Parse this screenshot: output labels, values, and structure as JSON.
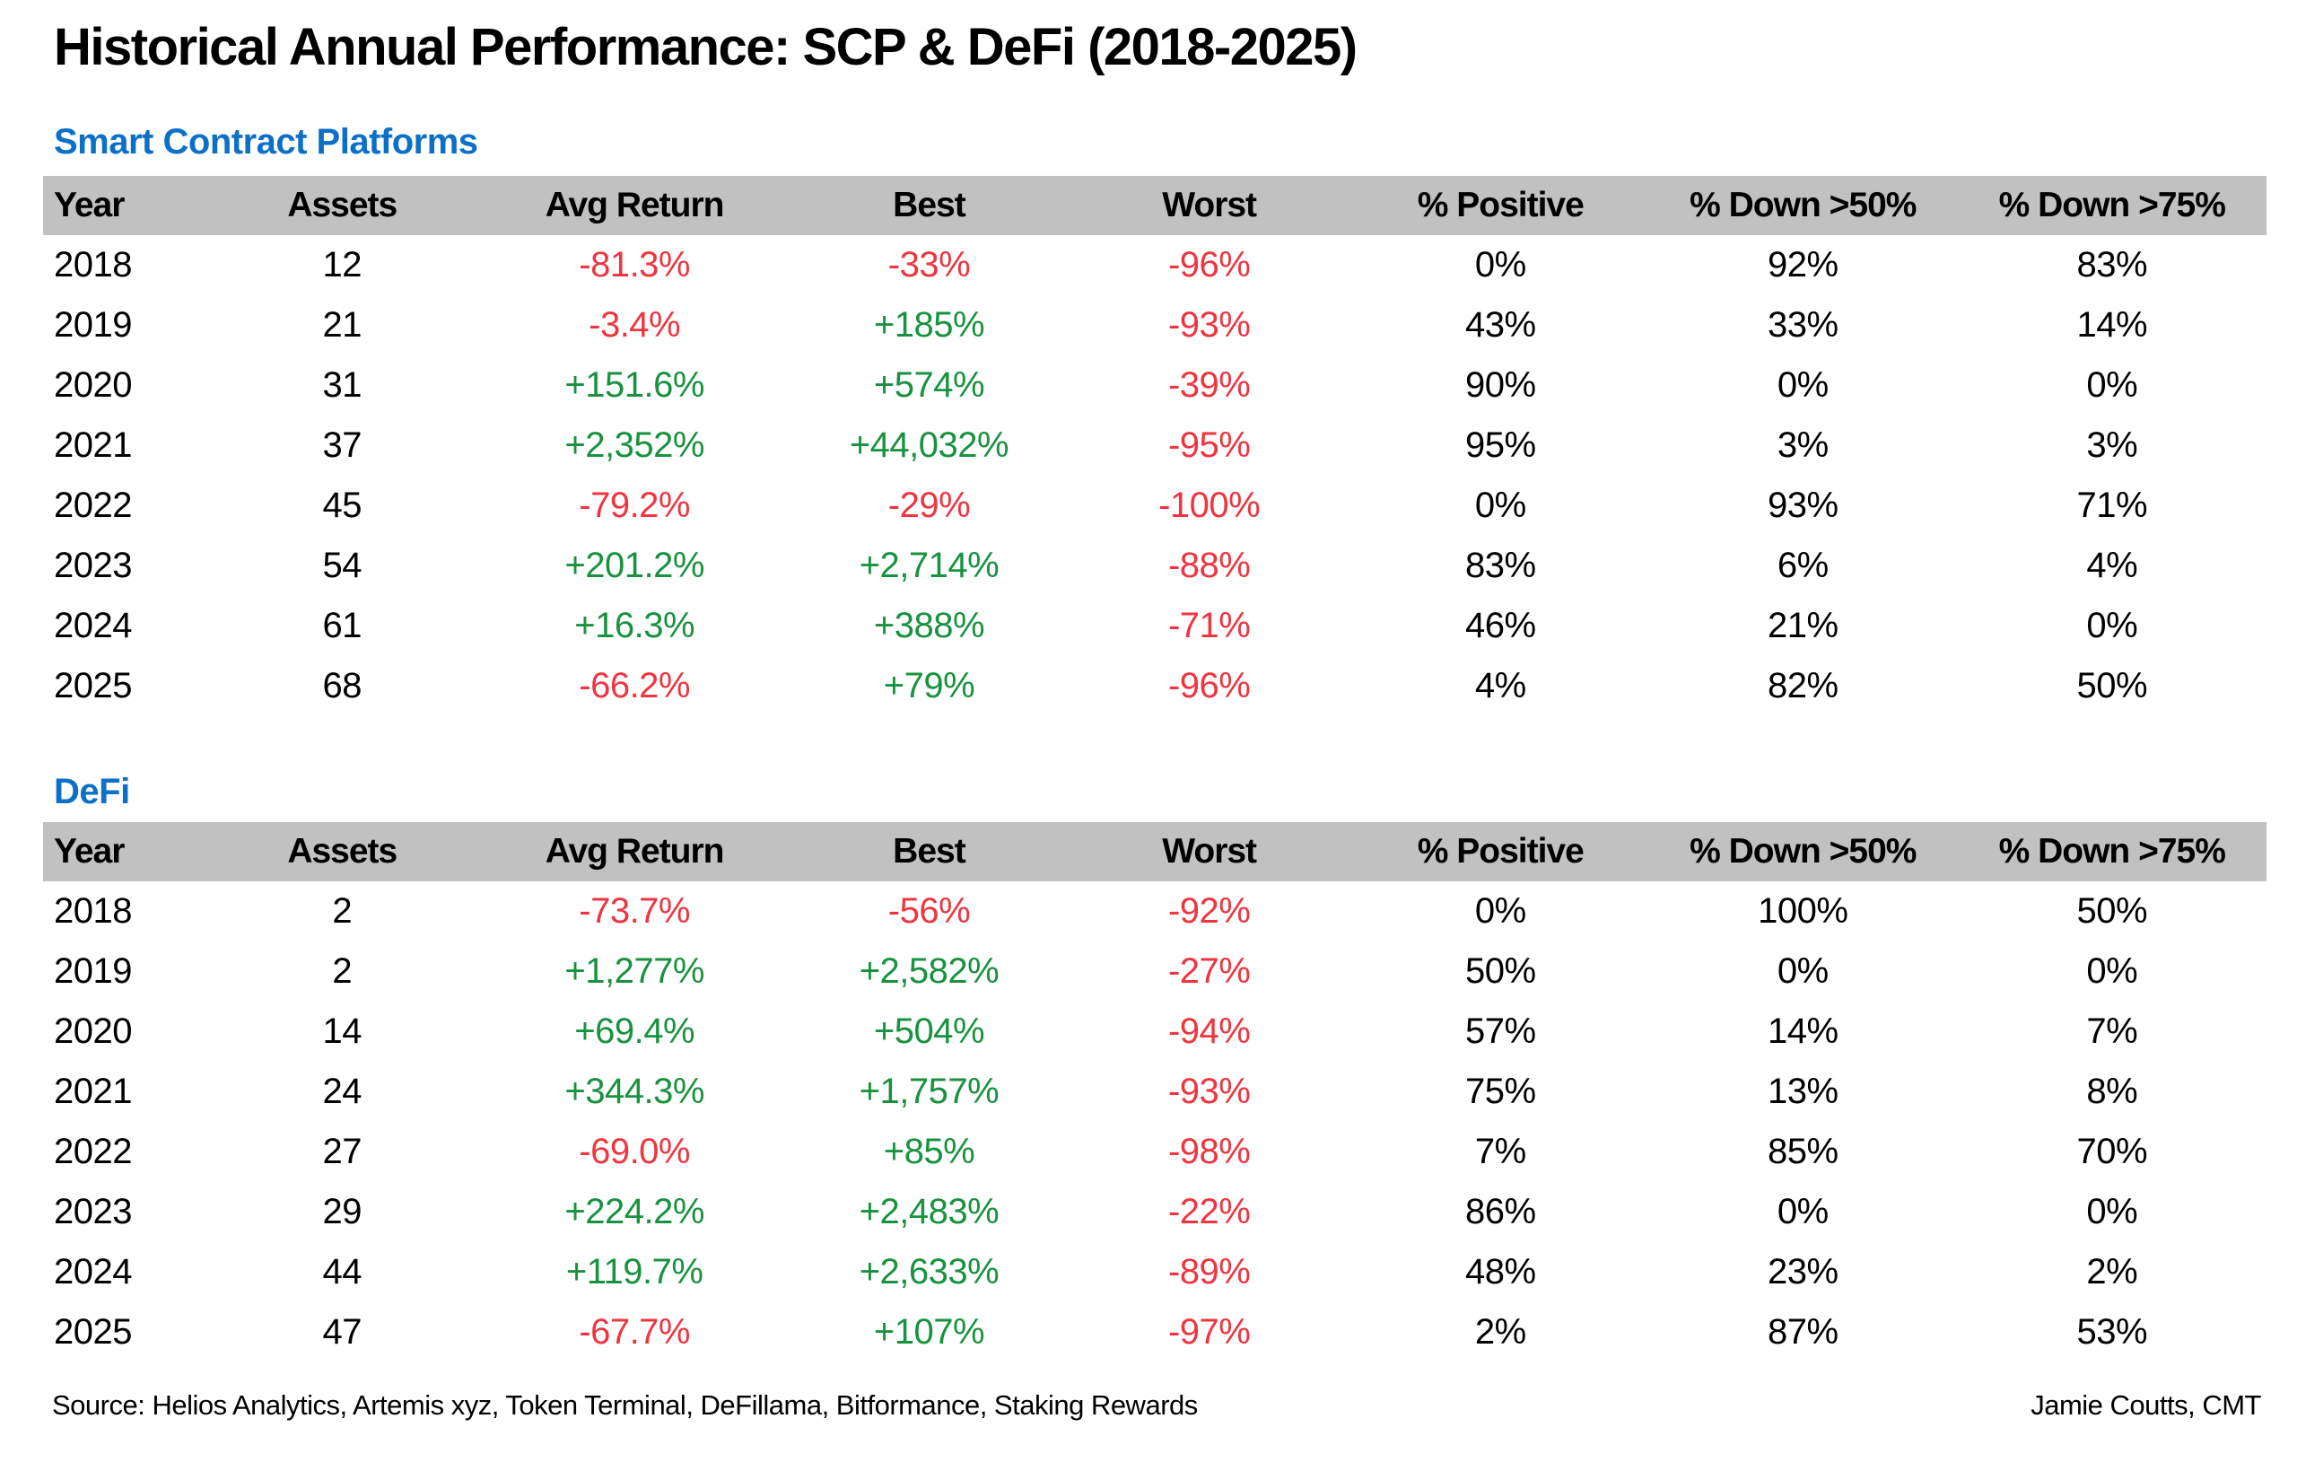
{
  "title": "Historical Annual Performance: SCP & DeFi (2018-2025)",
  "colors": {
    "heading_blue": "#0d70c8",
    "positive_green": "#18923f",
    "negative_red": "#ee3540",
    "header_band_gray": "#c1c1c1",
    "text_black": "#000000",
    "background": "#ffffff"
  },
  "chart_data": [
    {
      "type": "table",
      "title": "Smart Contract Platforms",
      "columns": [
        "Year",
        "Assets",
        "Avg Return",
        "Best",
        "Worst",
        "% Positive",
        "% Down >50%",
        "% Down >75%"
      ],
      "rows": [
        [
          "2018",
          "12",
          "-81.3%",
          "-33%",
          "-96%",
          "0%",
          "92%",
          "83%"
        ],
        [
          "2019",
          "21",
          "-3.4%",
          "+185%",
          "-93%",
          "43%",
          "33%",
          "14%"
        ],
        [
          "2020",
          "31",
          "+151.6%",
          "+574%",
          "-39%",
          "90%",
          "0%",
          "0%"
        ],
        [
          "2021",
          "37",
          "+2,352%",
          "+44,032%",
          "-95%",
          "95%",
          "3%",
          "3%"
        ],
        [
          "2022",
          "45",
          "-79.2%",
          "-29%",
          "-100%",
          "0%",
          "93%",
          "71%"
        ],
        [
          "2023",
          "54",
          "+201.2%",
          "+2,714%",
          "-88%",
          "83%",
          "6%",
          "4%"
        ],
        [
          "2024",
          "61",
          "+16.3%",
          "+388%",
          "-71%",
          "46%",
          "21%",
          "0%"
        ],
        [
          "2025",
          "68",
          "-66.2%",
          "+79%",
          "-96%",
          "4%",
          "82%",
          "50%"
        ]
      ]
    },
    {
      "type": "table",
      "title": "DeFi",
      "columns": [
        "Year",
        "Assets",
        "Avg Return",
        "Best",
        "Worst",
        "% Positive",
        "% Down >50%",
        "% Down >75%"
      ],
      "rows": [
        [
          "2018",
          "2",
          "-73.7%",
          "-56%",
          "-92%",
          "0%",
          "100%",
          "50%"
        ],
        [
          "2019",
          "2",
          "+1,277%",
          "+2,582%",
          "-27%",
          "50%",
          "0%",
          "0%"
        ],
        [
          "2020",
          "14",
          "+69.4%",
          "+504%",
          "-94%",
          "57%",
          "14%",
          "7%"
        ],
        [
          "2021",
          "24",
          "+344.3%",
          "+1,757%",
          "-93%",
          "75%",
          "13%",
          "8%"
        ],
        [
          "2022",
          "27",
          "-69.0%",
          "+85%",
          "-98%",
          "7%",
          "85%",
          "70%"
        ],
        [
          "2023",
          "29",
          "+224.2%",
          "+2,483%",
          "-22%",
          "86%",
          "0%",
          "0%"
        ],
        [
          "2024",
          "44",
          "+119.7%",
          "+2,633%",
          "-89%",
          "48%",
          "23%",
          "2%"
        ],
        [
          "2025",
          "47",
          "-67.7%",
          "+107%",
          "-97%",
          "2%",
          "87%",
          "53%"
        ]
      ]
    }
  ],
  "footer": {
    "source": "Source: Helios Analytics, Artemis xyz, Token Terminal, DeFillama, Bitformance, Staking Rewards",
    "credit": "Jamie Coutts, CMT"
  }
}
